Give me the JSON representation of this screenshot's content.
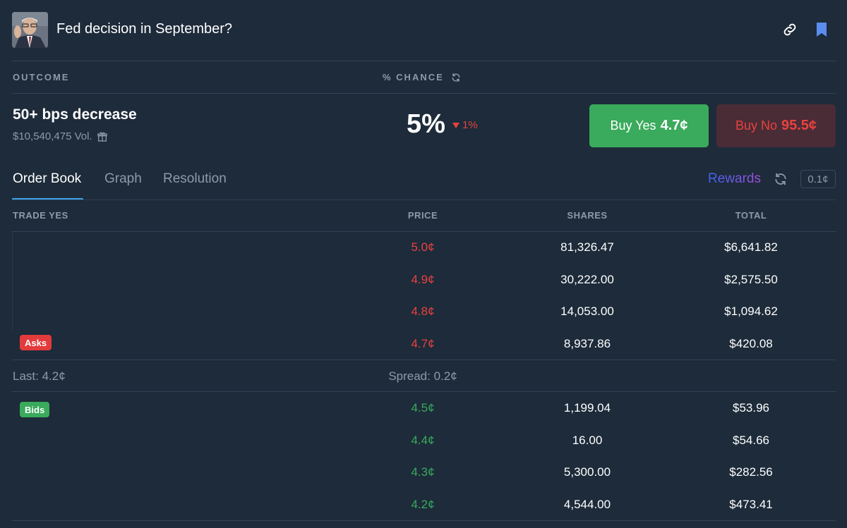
{
  "header": {
    "title": "Fed decision in September?",
    "link_icon": "link-icon",
    "bookmark_icon": "bookmark-icon"
  },
  "columns": {
    "outcome": "OUTCOME",
    "chance": "% CHANCE"
  },
  "outcome": {
    "name": "50+ bps decrease",
    "volume": "$10,540,475 Vol.",
    "chance": "5%",
    "delta": "1%"
  },
  "buttons": {
    "yes_label": "Buy Yes",
    "yes_price": "4.7¢",
    "no_label": "Buy No",
    "no_price": "95.5¢"
  },
  "tabs": [
    "Order Book",
    "Graph",
    "Resolution"
  ],
  "tab_active": "Order Book",
  "rewards": "Rewards",
  "tick_size": "0.1¢",
  "table": {
    "headers": [
      "TRADE YES",
      "PRICE",
      "SHARES",
      "TOTAL"
    ],
    "asks_label": "Asks",
    "bids_label": "Bids",
    "asks": [
      {
        "price": "5.0¢",
        "shares": "81,326.47",
        "total": "$6,641.82"
      },
      {
        "price": "4.9¢",
        "shares": "30,222.00",
        "total": "$2,575.50"
      },
      {
        "price": "4.8¢",
        "shares": "14,053.00",
        "total": "$1,094.62"
      },
      {
        "price": "4.7¢",
        "shares": "8,937.86",
        "total": "$420.08"
      }
    ],
    "last": "Last: 4.2¢",
    "spread": "Spread: 0.2¢",
    "bids": [
      {
        "price": "4.5¢",
        "shares": "1,199.04",
        "total": "$53.96"
      },
      {
        "price": "4.4¢",
        "shares": "16.00",
        "total": "$54.66"
      },
      {
        "price": "4.3¢",
        "shares": "5,300.00",
        "total": "$282.56"
      },
      {
        "price": "4.2¢",
        "shares": "4,544.00",
        "total": "$473.41"
      }
    ]
  },
  "colors": {
    "background": "#1d2b3a",
    "green": "#3aaa5c",
    "red": "#e8423f",
    "muted": "#8c9aa9",
    "tab_accent": "#3da4e9"
  }
}
